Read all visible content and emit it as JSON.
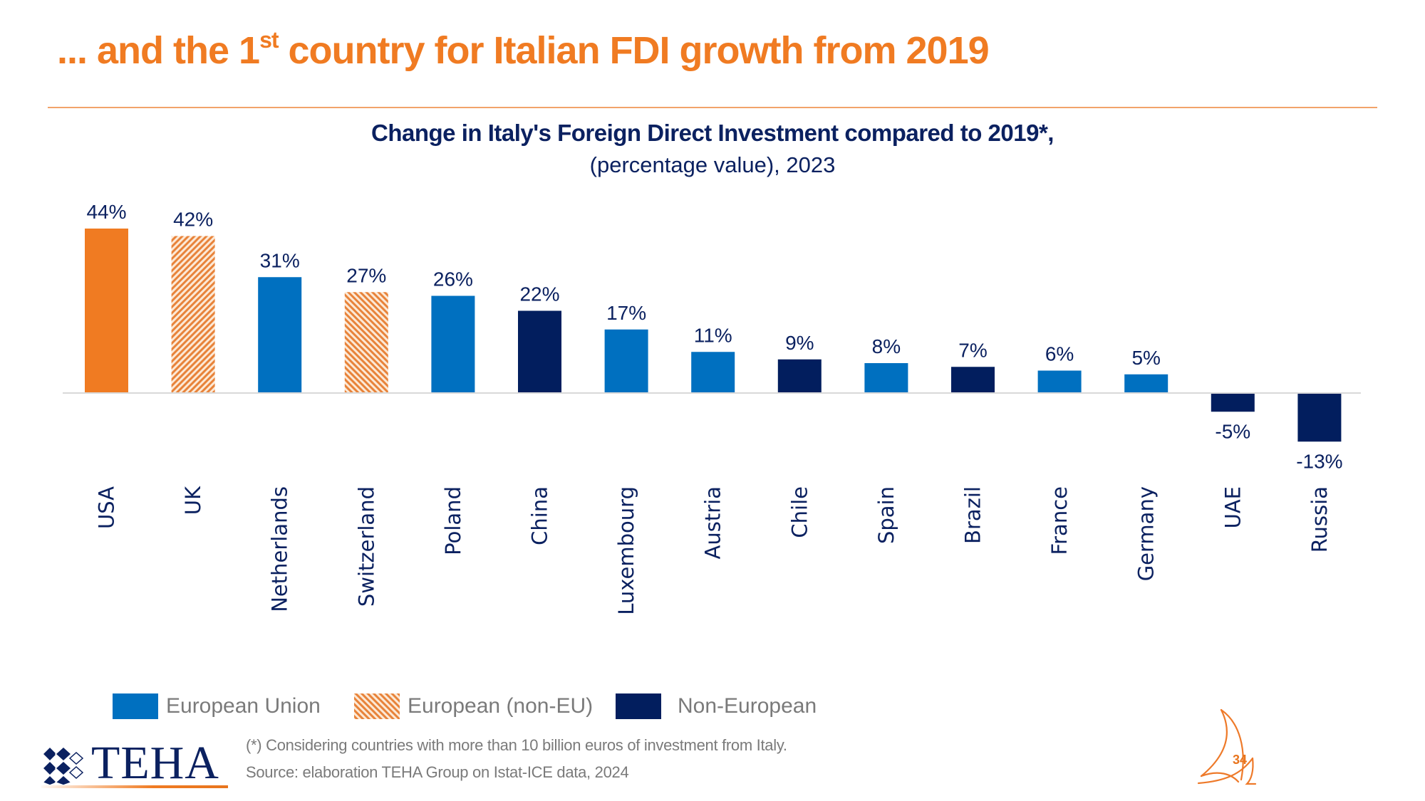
{
  "header": {
    "title_prefix": "... and the 1",
    "title_superscript": "st",
    "title_suffix": " country for Italian FDI growth from 2019"
  },
  "chart_data": {
    "type": "bar",
    "title": "Change in Italy's Foreign Direct Investment compared to 2019*,",
    "subtitle": "(percentage value), 2023",
    "xlabel": "",
    "ylabel": "",
    "categories": [
      "USA",
      "UK",
      "Netherlands",
      "Switzerland",
      "Poland",
      "China",
      "Luxembourg",
      "Austria",
      "Chile",
      "Spain",
      "Brazil",
      "France",
      "Germany",
      "UAE",
      "Russia"
    ],
    "values": [
      44,
      42,
      31,
      27,
      26,
      22,
      17,
      11,
      9,
      8,
      7,
      6,
      5,
      -5,
      -13
    ],
    "value_labels": [
      "44%",
      "42%",
      "31%",
      "27%",
      "26%",
      "22%",
      "17%",
      "11%",
      "9%",
      "8%",
      "7%",
      "6%",
      "5%",
      "-5%",
      "-13%"
    ],
    "groups": [
      "highlight",
      "non-eu-european",
      "eu",
      "non-eu-european",
      "eu",
      "non-european",
      "eu",
      "eu",
      "non-european",
      "eu",
      "non-european",
      "eu",
      "eu",
      "non-european",
      "non-european"
    ],
    "hatch_direction": [
      "",
      "forward",
      "",
      "back",
      "",
      "",
      "",
      "",
      "",
      "",
      "",
      "",
      "",
      "",
      ""
    ],
    "ylim": [
      -13,
      44
    ],
    "grid": false,
    "legend": {
      "position": "bottom",
      "entries": [
        {
          "key": "eu",
          "label": "European Union"
        },
        {
          "key": "non-eu-european",
          "label": "European (non-EU)"
        },
        {
          "key": "non-european",
          "label": "Non-European"
        }
      ]
    },
    "colors": {
      "highlight": "#F07B22",
      "eu": "#0070C0",
      "non-eu-european": "#E8833A",
      "non-european": "#021E5E",
      "label": "#0B2160",
      "axis": "#D9D9D9"
    }
  },
  "footer": {
    "note": "(*) Considering countries with more than 10 billion euros of investment from Italy.",
    "source": "Source: elaboration TEHA Group on Istat-ICE data, 2024",
    "logo_text": "TEHA",
    "page_number": "34"
  }
}
